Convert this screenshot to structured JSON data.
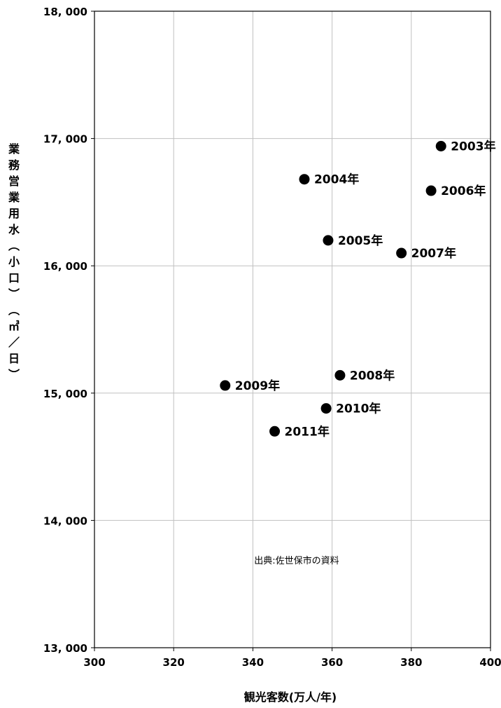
{
  "chart_data": {
    "type": "scatter",
    "title": "",
    "xlabel": "観光客数(万人/年)",
    "ylabel": "業務営業用水(小口)(㎥/日)",
    "xlim": [
      300,
      400
    ],
    "ylim": [
      13000,
      18000
    ],
    "x_ticks": [
      "300",
      "320",
      "340",
      "360",
      "380",
      "400"
    ],
    "y_ticks": [
      "13, 000",
      "14, 000",
      "15, 000",
      "16, 000",
      "17, 000",
      "18, 000"
    ],
    "grid": true,
    "points": [
      {
        "label": "2003年",
        "x": 387.5,
        "y": 16940
      },
      {
        "label": "2004年",
        "x": 353,
        "y": 16680
      },
      {
        "label": "2005年",
        "x": 359,
        "y": 16200
      },
      {
        "label": "2006年",
        "x": 385,
        "y": 16590
      },
      {
        "label": "2007年",
        "x": 377.5,
        "y": 16100
      },
      {
        "label": "2008年",
        "x": 362,
        "y": 15140
      },
      {
        "label": "2009年",
        "x": 333,
        "y": 15060
      },
      {
        "label": "2010年",
        "x": 358.5,
        "y": 14880
      },
      {
        "label": "2011年",
        "x": 345.5,
        "y": 14700
      }
    ],
    "annotation": "出典:佐世保市の資料",
    "marker_color": "#000000",
    "grid_color": "#c0c0c0"
  }
}
